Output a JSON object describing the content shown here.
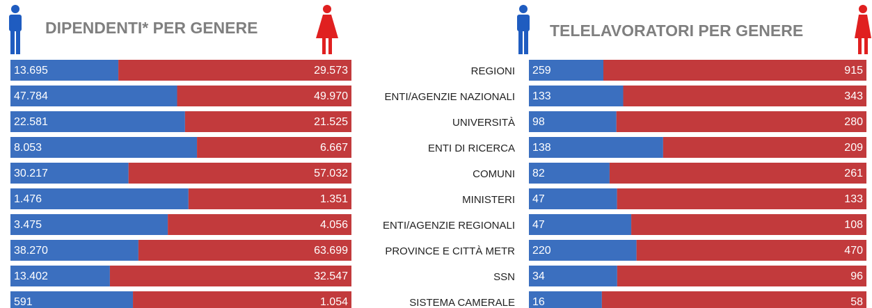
{
  "chart_data": [
    {
      "type": "bar",
      "stacked": "percent",
      "orientation": "horizontal",
      "title": "DIPENDENTI* PER GENERE",
      "categories": [
        "REGIONI",
        "ENTI/AGENZIE NAZIONALI",
        "UNIVERSITÀ",
        "ENTI DI RICERCA",
        "COMUNI",
        "MINISTERI",
        "ENTI/AGENZIE REGIONALI",
        "PROVINCE E CITTÀ METR",
        "SSN",
        "SISTEMA CAMERALE"
      ],
      "series": [
        {
          "color": "#3b6fbf",
          "values": [
            13695,
            47784,
            22581,
            8053,
            30217,
            1476,
            3475,
            38270,
            13402,
            591
          ],
          "value_labels": [
            "13.695",
            "47.784",
            "22.581",
            "8.053",
            "30.217",
            "1.476",
            "3.475",
            "38.270",
            "13.402",
            "591"
          ]
        },
        {
          "color": "#c23a3c",
          "values": [
            29573,
            49970,
            21525,
            6667,
            57032,
            1351,
            4056,
            63699,
            32547,
            1054
          ],
          "value_labels": [
            "29.573",
            "49.970",
            "21.525",
            "6.667",
            "57.032",
            "1.351",
            "4.056",
            "63.699",
            "32.547",
            "1.054"
          ]
        }
      ]
    },
    {
      "type": "bar",
      "stacked": "percent",
      "orientation": "horizontal",
      "title": "TELELAVORATORI PER GENERE",
      "series": [
        {
          "color": "#3b6fbf",
          "values": [
            259,
            133,
            98,
            138,
            82,
            47,
            47,
            220,
            34,
            16
          ]
        },
        {
          "color": "#c23a3c",
          "values": [
            915,
            343,
            280,
            209,
            261,
            133,
            108,
            470,
            96,
            58
          ]
        }
      ]
    }
  ]
}
